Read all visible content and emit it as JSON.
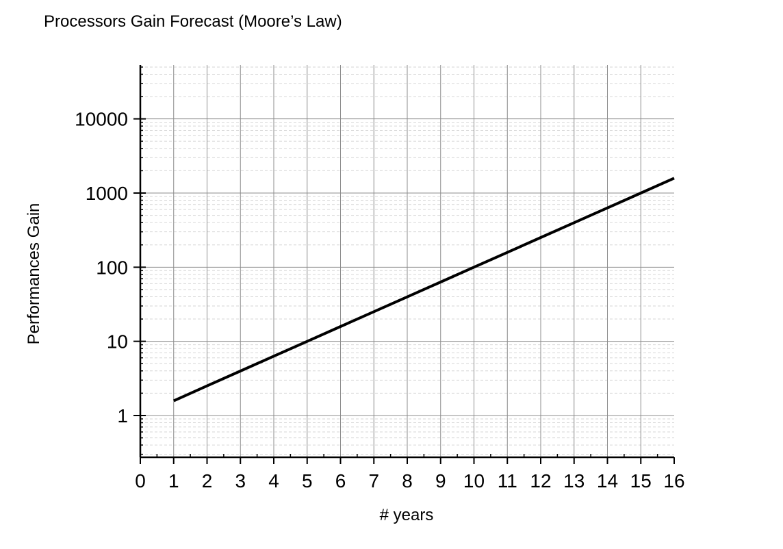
{
  "chart_data": {
    "type": "line",
    "title": "Processors Gain Forecast (Moore’s Law)",
    "xlabel": "# years",
    "ylabel": "Performances Gain",
    "xlim": [
      0,
      16
    ],
    "ylim": [
      0.27,
      60000
    ],
    "yscale": "log",
    "grid": true,
    "x_ticks": [
      "0",
      "1",
      "2",
      "3",
      "4",
      "5",
      "6",
      "7",
      "8",
      "9",
      "10",
      "11",
      "12",
      "13",
      "14",
      "15",
      "16"
    ],
    "y_ticks": [
      "1",
      "10",
      "100",
      "1000",
      "10000"
    ],
    "series": [
      {
        "color": "#000000",
        "x": [
          1,
          2,
          3,
          4,
          5,
          6,
          7,
          8,
          9,
          10,
          11,
          12,
          13,
          14,
          15,
          16
        ],
        "y": [
          1.58,
          2.51,
          3.98,
          6.31,
          10,
          15.85,
          25.12,
          39.81,
          63.1,
          100,
          158.5,
          251.2,
          398.1,
          631,
          1000,
          1585
        ]
      }
    ]
  }
}
